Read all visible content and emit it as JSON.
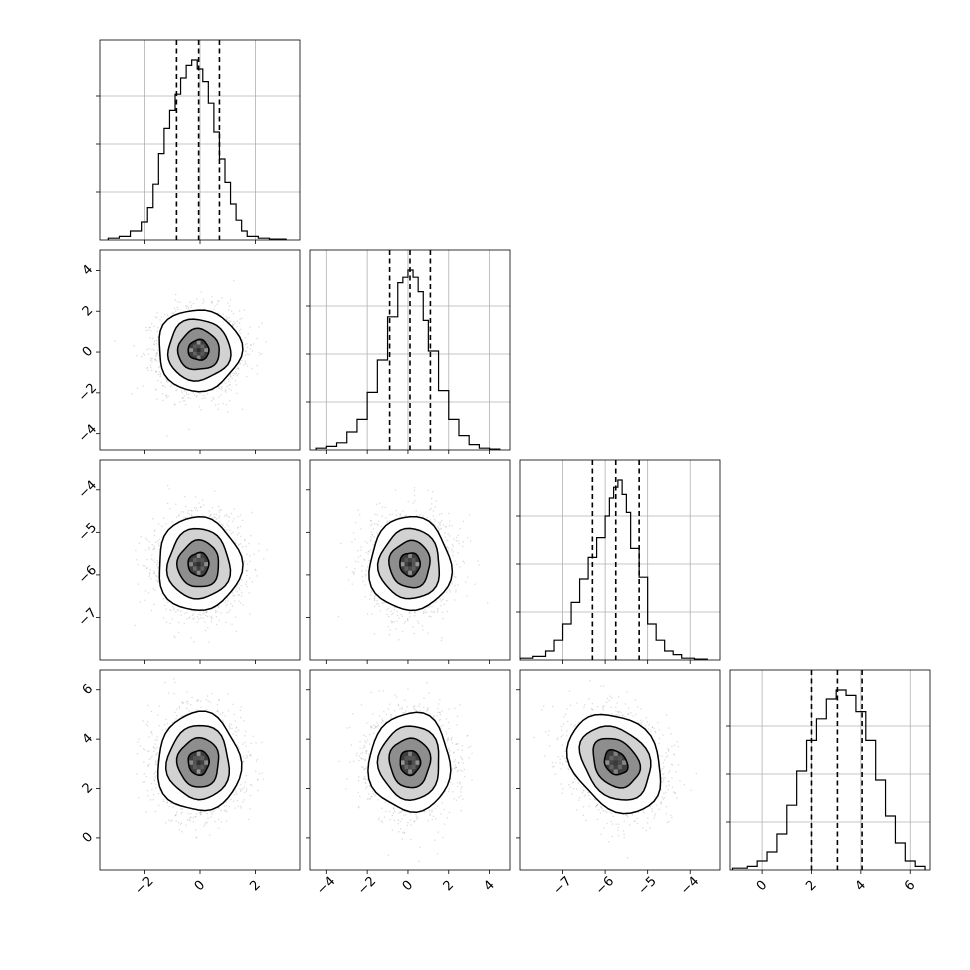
{
  "chart_data": {
    "type": "corner",
    "title": "",
    "parameters": [
      "",
      "",
      "",
      ""
    ],
    "grid": true,
    "quantiles": [
      0.16,
      0.5,
      0.84
    ],
    "means": [
      -0.05,
      0.1,
      -5.75,
      3.05
    ],
    "sigmas": [
      0.75,
      1.0,
      0.55,
      1.0
    ],
    "axis_ranges": [
      [
        -3.6,
        3.6
      ],
      [
        -4.8,
        5.0
      ],
      [
        -8.0,
        -3.3
      ],
      [
        -1.3,
        6.8
      ]
    ],
    "ticks": [
      [
        -2,
        0,
        2
      ],
      [
        -4,
        -2,
        0,
        2,
        4
      ],
      [
        -7,
        -6,
        -5,
        -4
      ],
      [
        0,
        2,
        4,
        6
      ]
    ],
    "tick_labels": [
      [
        "−2",
        "0",
        "2"
      ],
      [
        "−4",
        "−2",
        "0",
        "2",
        "4"
      ],
      [
        "−7",
        "−6",
        "−5",
        "−4"
      ],
      [
        "0",
        "2",
        "4",
        "6"
      ]
    ],
    "quantile_values": [
      [
        -0.85,
        -0.05,
        0.7
      ],
      [
        -0.9,
        0.1,
        1.1
      ],
      [
        -6.3,
        -5.75,
        -5.2
      ],
      [
        2.0,
        3.05,
        4.05
      ]
    ],
    "histograms": [
      {
        "bin_edges": [
          -3.3,
          -2.9,
          -2.5,
          -2.1,
          -1.9,
          -1.7,
          -1.5,
          -1.3,
          -1.1,
          -0.9,
          -0.7,
          -0.5,
          -0.3,
          -0.1,
          0.1,
          0.3,
          0.5,
          0.7,
          0.9,
          1.1,
          1.3,
          1.5,
          1.7,
          2.1,
          2.5,
          3.1
        ],
        "counts": [
          0.01,
          0.02,
          0.05,
          0.1,
          0.18,
          0.31,
          0.48,
          0.62,
          0.72,
          0.81,
          0.9,
          0.97,
          1.0,
          0.95,
          0.88,
          0.76,
          0.6,
          0.45,
          0.32,
          0.2,
          0.11,
          0.05,
          0.02,
          0.01,
          0.005
        ]
      },
      {
        "bin_edges": [
          -4.5,
          -4.0,
          -3.5,
          -3.0,
          -2.5,
          -2.0,
          -1.5,
          -1.0,
          -0.5,
          -0.25,
          0.0,
          0.25,
          0.5,
          0.75,
          1.0,
          1.5,
          2.0,
          2.5,
          3.0,
          3.5,
          4.0,
          4.5
        ],
        "counts": [
          0.01,
          0.02,
          0.04,
          0.1,
          0.17,
          0.32,
          0.5,
          0.74,
          0.93,
          0.96,
          1.0,
          0.96,
          0.88,
          0.72,
          0.55,
          0.33,
          0.17,
          0.08,
          0.03,
          0.01,
          0.005
        ]
      },
      {
        "bin_edges": [
          -8.0,
          -7.7,
          -7.4,
          -7.2,
          -7.0,
          -6.8,
          -6.6,
          -6.4,
          -6.2,
          -6.0,
          -5.9,
          -5.8,
          -5.7,
          -5.6,
          -5.5,
          -5.4,
          -5.2,
          -5.0,
          -4.8,
          -4.6,
          -4.4,
          -4.2,
          -3.9,
          -3.6
        ],
        "counts": [
          0.01,
          0.02,
          0.05,
          0.11,
          0.2,
          0.32,
          0.45,
          0.57,
          0.68,
          0.8,
          0.9,
          0.96,
          1.0,
          0.92,
          0.82,
          0.62,
          0.46,
          0.2,
          0.11,
          0.05,
          0.03,
          0.01,
          0.005
        ]
      },
      {
        "bin_edges": [
          -1.2,
          -0.6,
          -0.2,
          0.2,
          0.6,
          1.0,
          1.4,
          1.8,
          2.2,
          2.6,
          3.0,
          3.4,
          3.8,
          4.2,
          4.6,
          5.0,
          5.4,
          5.8,
          6.2,
          6.6
        ],
        "counts": [
          0.01,
          0.02,
          0.05,
          0.1,
          0.2,
          0.36,
          0.55,
          0.72,
          0.84,
          0.95,
          1.0,
          0.97,
          0.88,
          0.72,
          0.5,
          0.3,
          0.15,
          0.05,
          0.02
        ]
      }
    ]
  }
}
